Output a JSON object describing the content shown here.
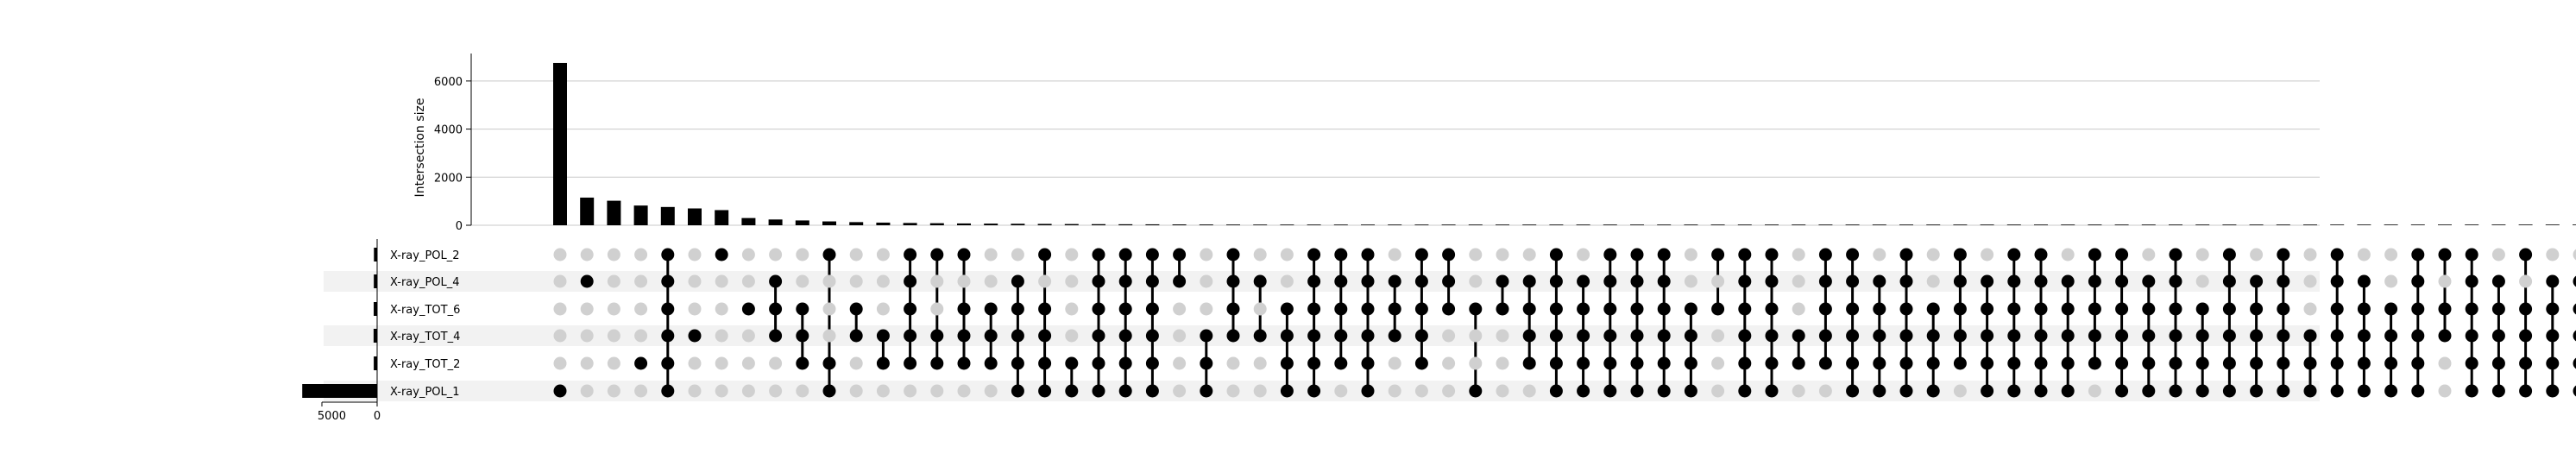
{
  "chart_data": {
    "type": "upset",
    "ylabel": "Intersection size",
    "y_ticks": [
      "0",
      "2000",
      "4000",
      "6000"
    ],
    "ylim": [
      0,
      7000
    ],
    "grid": true,
    "set_size_ticks": [
      "5000",
      "0"
    ],
    "sets": [
      "X-ray_POL_2",
      "X-ray_POL_4",
      "X-ray_TOT_6",
      "X-ray_TOT_4",
      "X-ray_TOT_2",
      "X-ray_POL_1"
    ],
    "set_sizes": [
      290,
      300,
      310,
      320,
      305,
      6780
    ],
    "colors": {
      "bar": "#000000",
      "active_dot": "#000000",
      "inactive_dot": "#d0d0d0",
      "stripe": "#f2f2f2",
      "grid": "#c8c8c8"
    },
    "intersections": [
      {
        "sets": [
          "X-ray_POL_1"
        ],
        "size": 6750
      },
      {
        "sets": [
          "X-ray_POL_4"
        ],
        "size": 1150
      },
      {
        "sets": [],
        "size": 1020
      },
      {
        "sets": [
          "X-ray_TOT_2"
        ],
        "size": 820
      },
      {
        "sets": [
          "X-ray_POL_2",
          "X-ray_POL_4",
          "X-ray_TOT_6",
          "X-ray_TOT_4",
          "X-ray_TOT_2",
          "X-ray_POL_1"
        ],
        "size": 760
      },
      {
        "sets": [
          "X-ray_TOT_4"
        ],
        "size": 700
      },
      {
        "sets": [
          "X-ray_POL_2"
        ],
        "size": 630
      },
      {
        "sets": [
          "X-ray_TOT_6"
        ],
        "size": 300
      },
      {
        "sets": [
          "X-ray_POL_4",
          "X-ray_TOT_6",
          "X-ray_TOT_4"
        ],
        "size": 240
      },
      {
        "sets": [
          "X-ray_TOT_6",
          "X-ray_TOT_4",
          "X-ray_TOT_2"
        ],
        "size": 200
      },
      {
        "sets": [
          "X-ray_POL_2",
          "X-ray_TOT_2",
          "X-ray_POL_1"
        ],
        "size": 160
      },
      {
        "sets": [
          "X-ray_TOT_6",
          "X-ray_TOT_4"
        ],
        "size": 130
      },
      {
        "sets": [
          "X-ray_TOT_4",
          "X-ray_TOT_2"
        ],
        "size": 110
      },
      {
        "sets": [
          "X-ray_POL_2",
          "X-ray_POL_4",
          "X-ray_TOT_6",
          "X-ray_TOT_4",
          "X-ray_TOT_2"
        ],
        "size": 95
      },
      {
        "sets": [
          "X-ray_POL_2",
          "X-ray_TOT_4",
          "X-ray_TOT_2"
        ],
        "size": 85
      },
      {
        "sets": [
          "X-ray_POL_2",
          "X-ray_TOT_6",
          "X-ray_TOT_4",
          "X-ray_TOT_2"
        ],
        "size": 75
      },
      {
        "sets": [
          "X-ray_TOT_6",
          "X-ray_TOT_4",
          "X-ray_TOT_2"
        ],
        "size": 68
      },
      {
        "sets": [
          "X-ray_POL_4",
          "X-ray_TOT_6",
          "X-ray_TOT_4",
          "X-ray_TOT_2",
          "X-ray_POL_1"
        ],
        "size": 62
      },
      {
        "sets": [
          "X-ray_POL_2",
          "X-ray_TOT_6",
          "X-ray_TOT_4",
          "X-ray_TOT_2",
          "X-ray_POL_1"
        ],
        "size": 56
      },
      {
        "sets": [
          "X-ray_TOT_2",
          "X-ray_POL_1"
        ],
        "size": 50
      },
      {
        "sets": [
          "X-ray_POL_2",
          "X-ray_POL_4",
          "X-ray_TOT_6",
          "X-ray_TOT_4",
          "X-ray_TOT_2",
          "X-ray_POL_1"
        ],
        "size": 45
      },
      {
        "sets": [
          "X-ray_POL_2",
          "X-ray_POL_4",
          "X-ray_TOT_6",
          "X-ray_TOT_4",
          "X-ray_TOT_2",
          "X-ray_POL_1"
        ],
        "size": 41
      },
      {
        "sets": [
          "X-ray_POL_2",
          "X-ray_POL_4",
          "X-ray_TOT_6",
          "X-ray_TOT_4",
          "X-ray_TOT_2",
          "X-ray_POL_1"
        ],
        "size": 38
      },
      {
        "sets": [
          "X-ray_POL_2",
          "X-ray_POL_4"
        ],
        "size": 35
      },
      {
        "sets": [
          "X-ray_TOT_4",
          "X-ray_TOT_2",
          "X-ray_POL_1"
        ],
        "size": 32
      },
      {
        "sets": [
          "X-ray_POL_2",
          "X-ray_POL_4",
          "X-ray_TOT_6",
          "X-ray_TOT_4"
        ],
        "size": 30
      },
      {
        "sets": [
          "X-ray_POL_4",
          "X-ray_TOT_4"
        ],
        "size": 28
      },
      {
        "sets": [
          "X-ray_TOT_6",
          "X-ray_TOT_4",
          "X-ray_TOT_2",
          "X-ray_POL_1"
        ],
        "size": 26
      },
      {
        "sets": [
          "X-ray_POL_2",
          "X-ray_POL_4",
          "X-ray_TOT_6",
          "X-ray_TOT_4",
          "X-ray_TOT_2",
          "X-ray_POL_1"
        ],
        "size": 24
      },
      {
        "sets": [
          "X-ray_POL_2",
          "X-ray_POL_4",
          "X-ray_TOT_6",
          "X-ray_TOT_4",
          "X-ray_TOT_2"
        ],
        "size": 22
      },
      {
        "sets": [
          "X-ray_POL_2",
          "X-ray_POL_4",
          "X-ray_TOT_6",
          "X-ray_TOT_4",
          "X-ray_TOT_2",
          "X-ray_POL_1"
        ],
        "size": 20
      },
      {
        "sets": [
          "X-ray_POL_4",
          "X-ray_TOT_6",
          "X-ray_TOT_4"
        ],
        "size": 19
      },
      {
        "sets": [
          "X-ray_POL_2",
          "X-ray_POL_4",
          "X-ray_TOT_6",
          "X-ray_TOT_4",
          "X-ray_TOT_2"
        ],
        "size": 18
      },
      {
        "sets": [
          "X-ray_POL_2",
          "X-ray_POL_4",
          "X-ray_TOT_6"
        ],
        "size": 17
      },
      {
        "sets": [
          "X-ray_TOT_6",
          "X-ray_POL_1"
        ],
        "size": 16
      },
      {
        "sets": [
          "X-ray_POL_4",
          "X-ray_TOT_6"
        ],
        "size": 15
      },
      {
        "sets": [
          "X-ray_POL_4",
          "X-ray_TOT_6",
          "X-ray_TOT_4",
          "X-ray_TOT_2"
        ],
        "size": 14
      },
      {
        "sets": [
          "X-ray_POL_2",
          "X-ray_POL_4",
          "X-ray_TOT_6",
          "X-ray_TOT_4",
          "X-ray_TOT_2",
          "X-ray_POL_1"
        ],
        "size": 13
      },
      {
        "sets": [
          "X-ray_POL_4",
          "X-ray_TOT_6",
          "X-ray_TOT_4",
          "X-ray_TOT_2",
          "X-ray_POL_1"
        ],
        "size": 12
      },
      {
        "sets": [
          "X-ray_POL_2",
          "X-ray_POL_4",
          "X-ray_TOT_6",
          "X-ray_TOT_4",
          "X-ray_TOT_2",
          "X-ray_POL_1"
        ],
        "size": 11
      },
      {
        "sets": [
          "X-ray_POL_2",
          "X-ray_POL_4",
          "X-ray_TOT_6",
          "X-ray_TOT_4",
          "X-ray_TOT_2",
          "X-ray_POL_1"
        ],
        "size": 10
      },
      {
        "sets": [
          "X-ray_POL_2",
          "X-ray_POL_4",
          "X-ray_TOT_6",
          "X-ray_TOT_4",
          "X-ray_TOT_2",
          "X-ray_POL_1"
        ],
        "size": 10
      },
      {
        "sets": [
          "X-ray_TOT_6",
          "X-ray_TOT_4",
          "X-ray_TOT_2",
          "X-ray_POL_1"
        ],
        "size": 9
      },
      {
        "sets": [
          "X-ray_POL_2",
          "X-ray_TOT_6"
        ],
        "size": 9
      },
      {
        "sets": [
          "X-ray_POL_2",
          "X-ray_POL_4",
          "X-ray_TOT_6",
          "X-ray_TOT_4",
          "X-ray_TOT_2",
          "X-ray_POL_1"
        ],
        "size": 8
      },
      {
        "sets": [
          "X-ray_POL_2",
          "X-ray_POL_4",
          "X-ray_TOT_6",
          "X-ray_TOT_4",
          "X-ray_TOT_2",
          "X-ray_POL_1"
        ],
        "size": 8
      },
      {
        "sets": [
          "X-ray_TOT_4",
          "X-ray_TOT_2"
        ],
        "size": 7
      },
      {
        "sets": [
          "X-ray_POL_2",
          "X-ray_POL_4",
          "X-ray_TOT_6",
          "X-ray_TOT_4",
          "X-ray_TOT_2"
        ],
        "size": 7
      },
      {
        "sets": [
          "X-ray_POL_2",
          "X-ray_POL_4",
          "X-ray_TOT_6",
          "X-ray_TOT_4",
          "X-ray_TOT_2",
          "X-ray_POL_1"
        ],
        "size": 6
      },
      {
        "sets": [
          "X-ray_POL_4",
          "X-ray_TOT_6",
          "X-ray_TOT_4",
          "X-ray_TOT_2",
          "X-ray_POL_1"
        ],
        "size": 6
      },
      {
        "sets": [
          "X-ray_POL_2",
          "X-ray_POL_4",
          "X-ray_TOT_6",
          "X-ray_TOT_4",
          "X-ray_TOT_2",
          "X-ray_POL_1"
        ],
        "size": 5
      },
      {
        "sets": [
          "X-ray_TOT_6",
          "X-ray_TOT_4",
          "X-ray_TOT_2",
          "X-ray_POL_1"
        ],
        "size": 5
      },
      {
        "sets": [
          "X-ray_POL_2",
          "X-ray_POL_4",
          "X-ray_TOT_6",
          "X-ray_TOT_4",
          "X-ray_TOT_2"
        ],
        "size": 4
      },
      {
        "sets": [
          "X-ray_POL_4",
          "X-ray_TOT_6",
          "X-ray_TOT_4",
          "X-ray_TOT_2",
          "X-ray_POL_1"
        ],
        "size": 4
      },
      {
        "sets": [
          "X-ray_POL_2",
          "X-ray_POL_4",
          "X-ray_TOT_6",
          "X-ray_TOT_4",
          "X-ray_TOT_2",
          "X-ray_POL_1"
        ],
        "size": 3
      },
      {
        "sets": [
          "X-ray_POL_2",
          "X-ray_POL_4",
          "X-ray_TOT_6",
          "X-ray_TOT_4",
          "X-ray_TOT_2",
          "X-ray_POL_1"
        ],
        "size": 3
      },
      {
        "sets": [
          "X-ray_POL_4",
          "X-ray_TOT_6",
          "X-ray_TOT_4",
          "X-ray_TOT_2",
          "X-ray_POL_1"
        ],
        "size": 3
      },
      {
        "sets": [
          "X-ray_POL_2",
          "X-ray_POL_4",
          "X-ray_TOT_6",
          "X-ray_TOT_4",
          "X-ray_TOT_2"
        ],
        "size": 2
      },
      {
        "sets": [
          "X-ray_POL_2",
          "X-ray_POL_4",
          "X-ray_TOT_6",
          "X-ray_TOT_4",
          "X-ray_TOT_2",
          "X-ray_POL_1"
        ],
        "size": 2
      },
      {
        "sets": [
          "X-ray_POL_4",
          "X-ray_TOT_6",
          "X-ray_TOT_4",
          "X-ray_TOT_2",
          "X-ray_POL_1"
        ],
        "size": 2
      },
      {
        "sets": [
          "X-ray_POL_2",
          "X-ray_POL_4",
          "X-ray_TOT_6",
          "X-ray_TOT_4",
          "X-ray_TOT_2",
          "X-ray_POL_1"
        ],
        "size": 2
      },
      {
        "sets": [
          "X-ray_TOT_6",
          "X-ray_TOT_4",
          "X-ray_TOT_2",
          "X-ray_POL_1"
        ],
        "size": 1
      },
      {
        "sets": [
          "X-ray_POL_2",
          "X-ray_POL_4",
          "X-ray_TOT_6",
          "X-ray_TOT_4",
          "X-ray_TOT_2",
          "X-ray_POL_1"
        ],
        "size": 1
      },
      {
        "sets": [
          "X-ray_POL_4",
          "X-ray_TOT_6",
          "X-ray_TOT_4",
          "X-ray_TOT_2",
          "X-ray_POL_1"
        ],
        "size": 1
      },
      {
        "sets": [
          "X-ray_POL_2",
          "X-ray_POL_4",
          "X-ray_TOT_6",
          "X-ray_TOT_4",
          "X-ray_TOT_2",
          "X-ray_POL_1"
        ],
        "size": 1
      },
      {
        "sets": [
          "X-ray_TOT_4",
          "X-ray_TOT_2",
          "X-ray_POL_1"
        ],
        "size": 1
      },
      {
        "sets": [
          "X-ray_POL_2",
          "X-ray_POL_4",
          "X-ray_TOT_6",
          "X-ray_TOT_4",
          "X-ray_TOT_2",
          "X-ray_POL_1"
        ],
        "size": 1
      },
      {
        "sets": [
          "X-ray_POL_4",
          "X-ray_TOT_6",
          "X-ray_TOT_4",
          "X-ray_TOT_2",
          "X-ray_POL_1"
        ],
        "size": 1
      },
      {
        "sets": [
          "X-ray_TOT_6",
          "X-ray_TOT_4",
          "X-ray_TOT_2",
          "X-ray_POL_1"
        ],
        "size": 1
      },
      {
        "sets": [
          "X-ray_POL_2",
          "X-ray_POL_4",
          "X-ray_TOT_6",
          "X-ray_TOT_4",
          "X-ray_TOT_2",
          "X-ray_POL_1"
        ],
        "size": 1
      },
      {
        "sets": [
          "X-ray_POL_2",
          "X-ray_TOT_6",
          "X-ray_TOT_4"
        ],
        "size": 0
      },
      {
        "sets": [
          "X-ray_POL_2",
          "X-ray_POL_4",
          "X-ray_TOT_6",
          "X-ray_TOT_4",
          "X-ray_TOT_2",
          "X-ray_POL_1"
        ],
        "size": 0
      },
      {
        "sets": [
          "X-ray_POL_4",
          "X-ray_TOT_6",
          "X-ray_TOT_4",
          "X-ray_TOT_2",
          "X-ray_POL_1"
        ],
        "size": 0
      },
      {
        "sets": [
          "X-ray_POL_2",
          "X-ray_TOT_6",
          "X-ray_TOT_4",
          "X-ray_TOT_2",
          "X-ray_POL_1"
        ],
        "size": 0
      },
      {
        "sets": [
          "X-ray_POL_4",
          "X-ray_TOT_6",
          "X-ray_TOT_4",
          "X-ray_TOT_2",
          "X-ray_POL_1"
        ],
        "size": 0
      },
      {
        "sets": [
          "X-ray_POL_4",
          "X-ray_TOT_6",
          "X-ray_TOT_4",
          "X-ray_TOT_2",
          "X-ray_POL_1"
        ],
        "size": 0
      },
      {
        "sets": [
          "X-ray_TOT_6",
          "X-ray_TOT_4",
          "X-ray_TOT_2",
          "X-ray_POL_1"
        ],
        "size": 0
      },
      {
        "sets": [
          "X-ray_POL_2",
          "X-ray_POL_4",
          "X-ray_TOT_6",
          "X-ray_TOT_4",
          "X-ray_TOT_2",
          "X-ray_POL_1"
        ],
        "size": 0
      },
      {
        "sets": [
          "X-ray_TOT_4",
          "X-ray_TOT_2",
          "X-ray_POL_1"
        ],
        "size": 0
      },
      {
        "sets": [
          "X-ray_POL_4",
          "X-ray_TOT_6",
          "X-ray_TOT_4",
          "X-ray_TOT_2",
          "X-ray_POL_1"
        ],
        "size": 0
      },
      {
        "sets": [
          "X-ray_POL_2",
          "X-ray_POL_4",
          "X-ray_TOT_6",
          "X-ray_TOT_4",
          "X-ray_TOT_2",
          "X-ray_POL_1"
        ],
        "size": 0
      },
      {
        "sets": [],
        "size": 0
      },
      {
        "sets": [
          "X-ray_TOT_6",
          "X-ray_TOT_4",
          "X-ray_TOT_2",
          "X-ray_POL_1"
        ],
        "size": 0
      },
      {
        "sets": [
          "X-ray_POL_4",
          "X-ray_TOT_6"
        ],
        "size": 0
      },
      {
        "sets": [
          "X-ray_POL_2",
          "X-ray_POL_4",
          "X-ray_TOT_6",
          "X-ray_TOT_4",
          "X-ray_TOT_2",
          "X-ray_POL_1"
        ],
        "size": 0
      },
      {
        "sets": [
          "X-ray_POL_4",
          "X-ray_TOT_6",
          "X-ray_TOT_4",
          "X-ray_TOT_2",
          "X-ray_POL_1"
        ],
        "size": 0
      },
      {
        "sets": [
          "X-ray_POL_2",
          "X-ray_POL_4",
          "X-ray_TOT_6",
          "X-ray_TOT_4",
          "X-ray_TOT_2",
          "X-ray_POL_1"
        ],
        "size": 0
      },
      {
        "sets": [
          "X-ray_TOT_6",
          "X-ray_TOT_4",
          "X-ray_TOT_2",
          "X-ray_POL_1"
        ],
        "size": 0
      },
      {
        "sets": [
          "X-ray_POL_4",
          "X-ray_TOT_6",
          "X-ray_TOT_4",
          "X-ray_TOT_2",
          "X-ray_POL_1"
        ],
        "size": 0
      },
      {
        "sets": [],
        "size": 0
      },
      {
        "sets": [
          "X-ray_POL_2",
          "X-ray_POL_4",
          "X-ray_TOT_6",
          "X-ray_TOT_4",
          "X-ray_TOT_2",
          "X-ray_POL_1"
        ],
        "size": 0
      },
      {
        "sets": [
          "X-ray_POL_4",
          "X-ray_TOT_6",
          "X-ray_TOT_4",
          "X-ray_TOT_2"
        ],
        "size": 0
      }
    ]
  }
}
